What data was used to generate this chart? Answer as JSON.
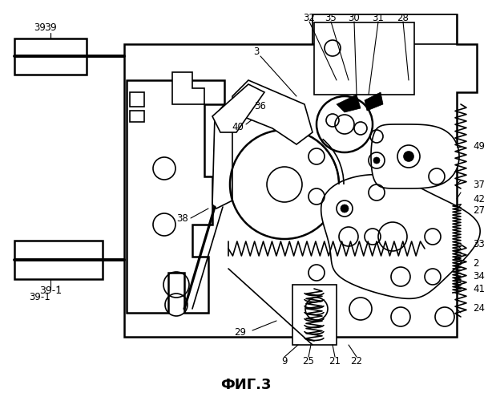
{
  "title": "ФИГ.3",
  "title_fontsize": 13,
  "title_fontweight": "bold",
  "bg_color": "#ffffff",
  "line_color": "#000000",
  "figw": 6.14,
  "figh": 5.0,
  "dpi": 100
}
